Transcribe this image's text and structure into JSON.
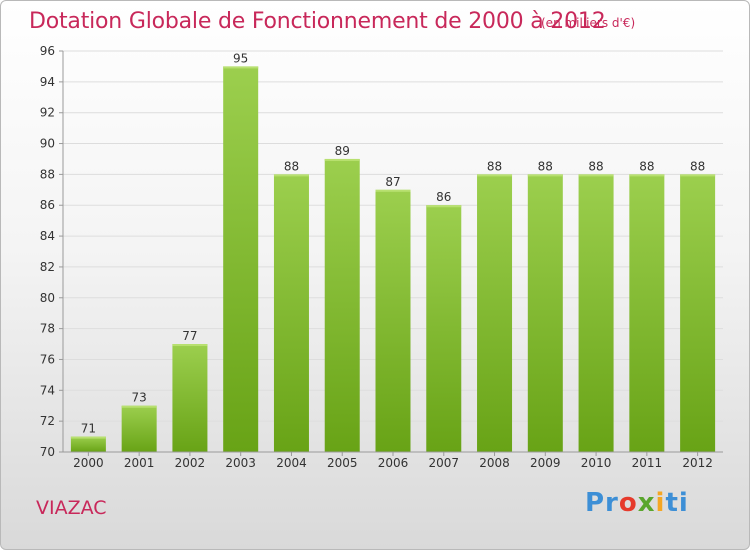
{
  "header": {
    "title": "Dotation Globale de Fonctionnement de 2000 à 2012",
    "unit": "(en milliers d'€)"
  },
  "commune": "VIAZAC",
  "brand": {
    "parts": [
      "Pr",
      "o",
      "x",
      "i",
      "ti"
    ]
  },
  "colors": {
    "title": "#c8285a",
    "bar_light": "#9ccf4e",
    "bar_dark": "#6aa418",
    "grid": "#dddddd",
    "axis_text": "#333333"
  },
  "chart_data": {
    "type": "bar",
    "title": "Dotation Globale de Fonctionnement de 2000 à 2012",
    "subtitle": "(en milliers d'€)",
    "categories": [
      "2000",
      "2001",
      "2002",
      "2003",
      "2004",
      "2005",
      "2006",
      "2007",
      "2008",
      "2009",
      "2010",
      "2011",
      "2012"
    ],
    "values": [
      71,
      73,
      77,
      95,
      88,
      89,
      87,
      86,
      88,
      88,
      88,
      88,
      88
    ],
    "data_labels": [
      "71",
      "73",
      "77",
      "95",
      "88",
      "89",
      "87",
      "86",
      "88",
      "88",
      "88",
      "88",
      "88"
    ],
    "y_ticks": [
      "70",
      "72",
      "74",
      "76",
      "78",
      "80",
      "82",
      "84",
      "86",
      "88",
      "90",
      "92",
      "94",
      "96"
    ],
    "ylim": [
      70,
      96
    ],
    "xlabel": "",
    "ylabel": "",
    "grid": true,
    "legend": "none"
  }
}
